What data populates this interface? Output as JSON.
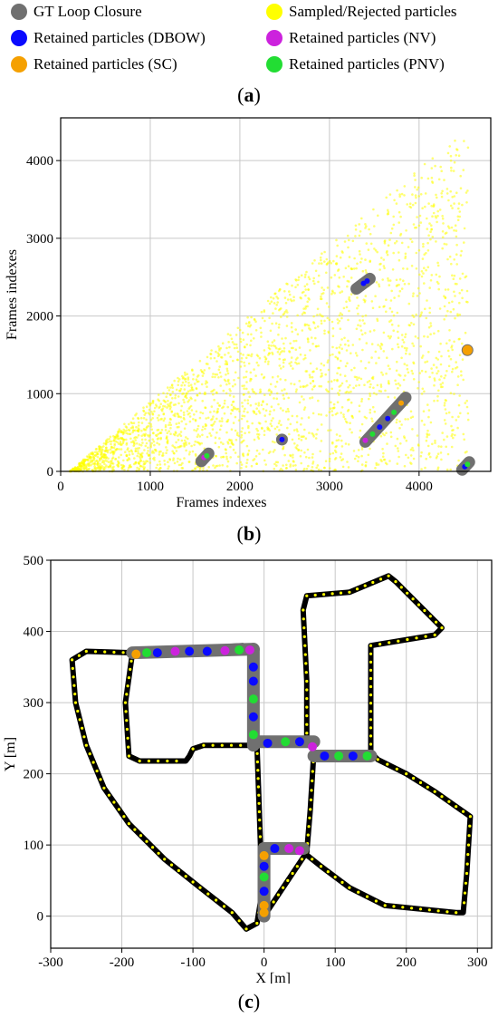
{
  "legend": [
    {
      "label": "GT Loop Closure",
      "color": "#707070"
    },
    {
      "label": "Sampled/Rejected particles",
      "color": "#ffff00"
    },
    {
      "label": "Retained particles (DBOW)",
      "color": "#0a0aff"
    },
    {
      "label": "Retained particles (NV)",
      "color": "#cc22dd"
    },
    {
      "label": "Retained particles (SC)",
      "color": "#f5a000"
    },
    {
      "label": "Retained particles (PNV)",
      "color": "#22dd33"
    }
  ],
  "panel_labels": {
    "a": "a",
    "b": "b",
    "c": "c"
  },
  "chart_data": [
    {
      "type": "scatter",
      "title": "",
      "xlabel": "Frames indexes",
      "ylabel": "Frames indexes",
      "xlim": [
        0,
        4800
      ],
      "ylim": [
        0,
        4550
      ],
      "xticks": [
        0,
        1000,
        2000,
        3000,
        4000
      ],
      "yticks": [
        0,
        1000,
        2000,
        3000,
        4000
      ],
      "grid": true,
      "sampled_region": "triangle y < x - 100, x in [100, 4550]",
      "gt_loop_segments": [
        {
          "start": [
            1570,
            130
          ],
          "end": [
            1650,
            230
          ]
        },
        {
          "start": [
            2470,
            410
          ],
          "end": [
            2470,
            410
          ]
        },
        {
          "start": [
            3300,
            2350
          ],
          "end": [
            3450,
            2480
          ]
        },
        {
          "start": [
            3400,
            380
          ],
          "end": [
            3850,
            950
          ]
        },
        {
          "start": [
            4540,
            1560
          ],
          "end": [
            4540,
            1560
          ]
        },
        {
          "start": [
            4480,
            20
          ],
          "end": [
            4560,
            120
          ]
        }
      ],
      "retained_points": [
        {
          "x": 4540,
          "y": 1560,
          "series": "SC"
        },
        {
          "x": 2470,
          "y": 410,
          "series": "NV"
        },
        {
          "x": 2470,
          "y": 410,
          "series": "DBOW"
        },
        {
          "x": 1600,
          "y": 180,
          "series": "NV"
        },
        {
          "x": 1630,
          "y": 200,
          "series": "PNV"
        },
        {
          "x": 3380,
          "y": 2420,
          "series": "DBOW"
        },
        {
          "x": 3420,
          "y": 2450,
          "series": "DBOW"
        },
        {
          "x": 3400,
          "y": 400,
          "series": "NV"
        },
        {
          "x": 3480,
          "y": 480,
          "series": "PNV"
        },
        {
          "x": 3560,
          "y": 570,
          "series": "DBOW"
        },
        {
          "x": 3650,
          "y": 680,
          "series": "DBOW"
        },
        {
          "x": 3720,
          "y": 760,
          "series": "PNV"
        },
        {
          "x": 3800,
          "y": 880,
          "series": "SC"
        },
        {
          "x": 4510,
          "y": 60,
          "series": "DBOW"
        },
        {
          "x": 4540,
          "y": 90,
          "series": "PNV"
        }
      ]
    },
    {
      "type": "line",
      "title": "",
      "xlabel": "X [m]",
      "ylabel": "Y [m]",
      "xlim": [
        -300,
        320
      ],
      "ylim": [
        -45,
        500
      ],
      "xticks": [
        -300,
        -200,
        -100,
        0,
        100,
        200,
        300
      ],
      "yticks": [
        0,
        100,
        200,
        300,
        400,
        500
      ],
      "grid": true,
      "trajectory": [
        [
          -185,
          370
        ],
        [
          -250,
          372
        ],
        [
          -270,
          360
        ],
        [
          -265,
          300
        ],
        [
          -250,
          240
        ],
        [
          -225,
          180
        ],
        [
          -190,
          130
        ],
        [
          -140,
          80
        ],
        [
          -90,
          40
        ],
        [
          -45,
          5
        ],
        [
          -25,
          -18
        ],
        [
          -10,
          -10
        ],
        [
          -5,
          20
        ],
        [
          -5,
          100
        ],
        [
          -10,
          240
        ],
        [
          -15,
          300
        ],
        [
          -15,
          370
        ],
        [
          -30,
          380
        ],
        [
          -185,
          370
        ],
        [
          -195,
          300
        ],
        [
          -190,
          225
        ],
        [
          -175,
          218
        ],
        [
          -110,
          218
        ],
        [
          -105,
          225
        ],
        [
          -100,
          235
        ],
        [
          -85,
          240
        ],
        [
          -20,
          240
        ],
        [
          60,
          245
        ],
        [
          60,
          330
        ],
        [
          55,
          430
        ],
        [
          60,
          450
        ],
        [
          120,
          455
        ],
        [
          175,
          478
        ],
        [
          185,
          470
        ],
        [
          250,
          405
        ],
        [
          240,
          395
        ],
        [
          150,
          380
        ],
        [
          150,
          230
        ],
        [
          160,
          220
        ],
        [
          200,
          200
        ],
        [
          240,
          175
        ],
        [
          290,
          140
        ],
        [
          285,
          60
        ],
        [
          280,
          5
        ],
        [
          270,
          5
        ],
        [
          170,
          15
        ],
        [
          120,
          40
        ],
        [
          80,
          70
        ],
        [
          55,
          90
        ],
        [
          40,
          95
        ],
        [
          0,
          95
        ],
        [
          0,
          0
        ],
        [
          60,
          90
        ],
        [
          65,
          150
        ],
        [
          70,
          230
        ]
      ],
      "gt_loop_segments": [
        [
          [
            -185,
            370
          ],
          [
            -15,
            375
          ]
        ],
        [
          [
            -15,
            375
          ],
          [
            -15,
            240
          ]
        ],
        [
          [
            -15,
            245
          ],
          [
            70,
            245
          ]
        ],
        [
          [
            70,
            225
          ],
          [
            150,
            225
          ]
        ],
        [
          [
            0,
            95
          ],
          [
            55,
            95
          ]
        ],
        [
          [
            0,
            95
          ],
          [
            0,
            0
          ]
        ]
      ],
      "retained_points": [
        {
          "x": -180,
          "y": 368,
          "series": "SC"
        },
        {
          "x": -165,
          "y": 370,
          "series": "PNV"
        },
        {
          "x": -150,
          "y": 370,
          "series": "DBOW"
        },
        {
          "x": -125,
          "y": 372,
          "series": "NV"
        },
        {
          "x": -105,
          "y": 372,
          "series": "DBOW"
        },
        {
          "x": -80,
          "y": 372,
          "series": "DBOW"
        },
        {
          "x": -55,
          "y": 373,
          "series": "NV"
        },
        {
          "x": -35,
          "y": 374,
          "series": "PNV"
        },
        {
          "x": -20,
          "y": 374,
          "series": "NV"
        },
        {
          "x": -15,
          "y": 350,
          "series": "DBOW"
        },
        {
          "x": -15,
          "y": 330,
          "series": "DBOW"
        },
        {
          "x": -15,
          "y": 305,
          "series": "PNV"
        },
        {
          "x": -15,
          "y": 280,
          "series": "DBOW"
        },
        {
          "x": -15,
          "y": 255,
          "series": "PNV"
        },
        {
          "x": 5,
          "y": 243,
          "series": "DBOW"
        },
        {
          "x": 30,
          "y": 245,
          "series": "PNV"
        },
        {
          "x": 50,
          "y": 245,
          "series": "DBOW"
        },
        {
          "x": 68,
          "y": 238,
          "series": "NV"
        },
        {
          "x": 85,
          "y": 225,
          "series": "DBOW"
        },
        {
          "x": 105,
          "y": 225,
          "series": "PNV"
        },
        {
          "x": 125,
          "y": 225,
          "series": "DBOW"
        },
        {
          "x": 145,
          "y": 225,
          "series": "PNV"
        },
        {
          "x": 15,
          "y": 95,
          "series": "DBOW"
        },
        {
          "x": 35,
          "y": 95,
          "series": "NV"
        },
        {
          "x": 50,
          "y": 92,
          "series": "NV"
        },
        {
          "x": 0,
          "y": 85,
          "series": "SC"
        },
        {
          "x": 0,
          "y": 70,
          "series": "DBOW"
        },
        {
          "x": 0,
          "y": 55,
          "series": "PNV"
        },
        {
          "x": 0,
          "y": 35,
          "series": "DBOW"
        },
        {
          "x": 0,
          "y": 15,
          "series": "SC"
        },
        {
          "x": 0,
          "y": 5,
          "series": "SC"
        }
      ]
    }
  ]
}
